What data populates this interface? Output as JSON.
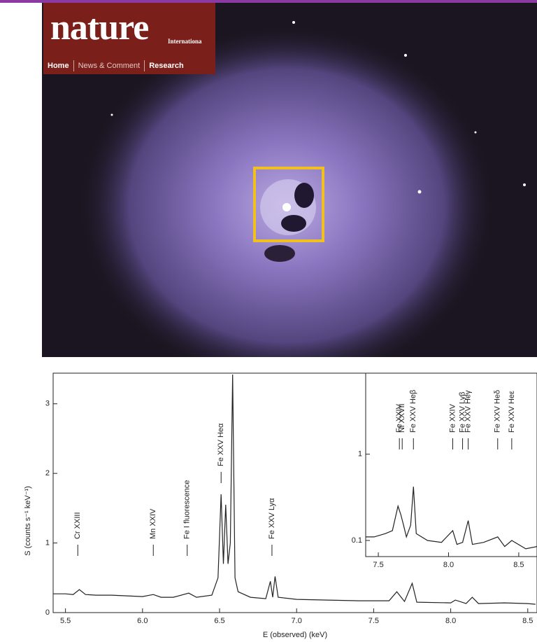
{
  "header": {
    "logo": "nature",
    "logo_sub": "Internationa",
    "nav": [
      "Home",
      "News & Comment",
      "Research"
    ]
  },
  "chart_data": [
    {
      "type": "line",
      "xlabel": "E (observed) (keV)",
      "ylabel": "S (counts s⁻¹ keV⁻¹)",
      "xlim": [
        5.42,
        8.56
      ],
      "ylim": [
        0,
        3.44
      ],
      "xticks": [
        5.5,
        {
          "value": 6,
          "label": "6.0"
        },
        6.5,
        {
          "value": 7,
          "label": "7.0"
        },
        7.5,
        {
          "value": 8,
          "label": "8.0"
        },
        8.5
      ],
      "yticks": [
        0,
        1,
        2,
        3
      ],
      "color": "#222222",
      "x": [
        5.42,
        5.5,
        5.55,
        5.59,
        5.63,
        5.7,
        5.8,
        5.9,
        6.0,
        6.07,
        6.12,
        6.2,
        6.3,
        6.35,
        6.45,
        6.49,
        6.51,
        6.525,
        6.54,
        6.555,
        6.57,
        6.585,
        6.6,
        6.62,
        6.7,
        6.8,
        6.83,
        6.845,
        6.86,
        6.88,
        7.0,
        7.2,
        7.4,
        7.6,
        7.65,
        7.7,
        7.75,
        7.78,
        8.0,
        8.03,
        8.1,
        8.14,
        8.18,
        8.35,
        8.5,
        8.55
      ],
      "values": [
        0.27,
        0.27,
        0.26,
        0.33,
        0.26,
        0.25,
        0.25,
        0.24,
        0.23,
        0.26,
        0.22,
        0.22,
        0.28,
        0.22,
        0.25,
        0.5,
        1.7,
        0.7,
        1.55,
        0.7,
        1.0,
        3.42,
        0.5,
        0.3,
        0.22,
        0.2,
        0.45,
        0.22,
        0.52,
        0.22,
        0.19,
        0.18,
        0.17,
        0.17,
        0.3,
        0.16,
        0.42,
        0.15,
        0.14,
        0.18,
        0.13,
        0.22,
        0.13,
        0.14,
        0.13,
        0.12
      ],
      "annotations": [
        {
          "text": "Cr XXIII",
          "x": 5.58
        },
        {
          "text": "Mn XXIV",
          "x": 6.07
        },
        {
          "text": "Fe I fluorescence",
          "x": 6.29
        },
        {
          "text": "Fe XXV Heα",
          "x": 6.51
        },
        {
          "text": "Fe XXV Lyα",
          "x": 6.84
        }
      ]
    },
    {
      "type": "line",
      "log_y": true,
      "xlim": [
        7.41,
        8.63
      ],
      "ylim": [
        0.065,
        8.7
      ],
      "xticks": [
        7.5,
        {
          "value": 8,
          "label": "8.0"
        },
        8.5
      ],
      "yticks": [
        0.1,
        1
      ],
      "color": "#222222",
      "x": [
        7.41,
        7.47,
        7.55,
        7.6,
        7.64,
        7.66,
        7.68,
        7.7,
        7.73,
        7.75,
        7.77,
        7.85,
        7.95,
        8.03,
        8.06,
        8.1,
        8.14,
        8.17,
        8.25,
        8.35,
        8.4,
        8.45,
        8.55,
        8.63
      ],
      "values": [
        0.11,
        0.11,
        0.12,
        0.13,
        0.25,
        0.2,
        0.15,
        0.11,
        0.15,
        0.42,
        0.12,
        0.1,
        0.095,
        0.13,
        0.09,
        0.095,
        0.17,
        0.09,
        0.095,
        0.11,
        0.085,
        0.1,
        0.08,
        0.085
      ],
      "annotations": [
        {
          "text": "Fe XXIV",
          "x": 7.65
        },
        {
          "text": "Ni XXVII",
          "x": 7.67
        },
        {
          "text": "Fe XXV Heβ",
          "x": 7.75
        },
        {
          "text": "Fe XXIV",
          "x": 8.03
        },
        {
          "text": "Fe XXV Lyβ",
          "x": 8.1
        },
        {
          "text": "Fe XXV Heγ",
          "x": 8.14
        },
        {
          "text": "Fe XXV Heδ",
          "x": 8.35
        },
        {
          "text": "Fe XXV Heε",
          "x": 8.45
        }
      ]
    }
  ]
}
